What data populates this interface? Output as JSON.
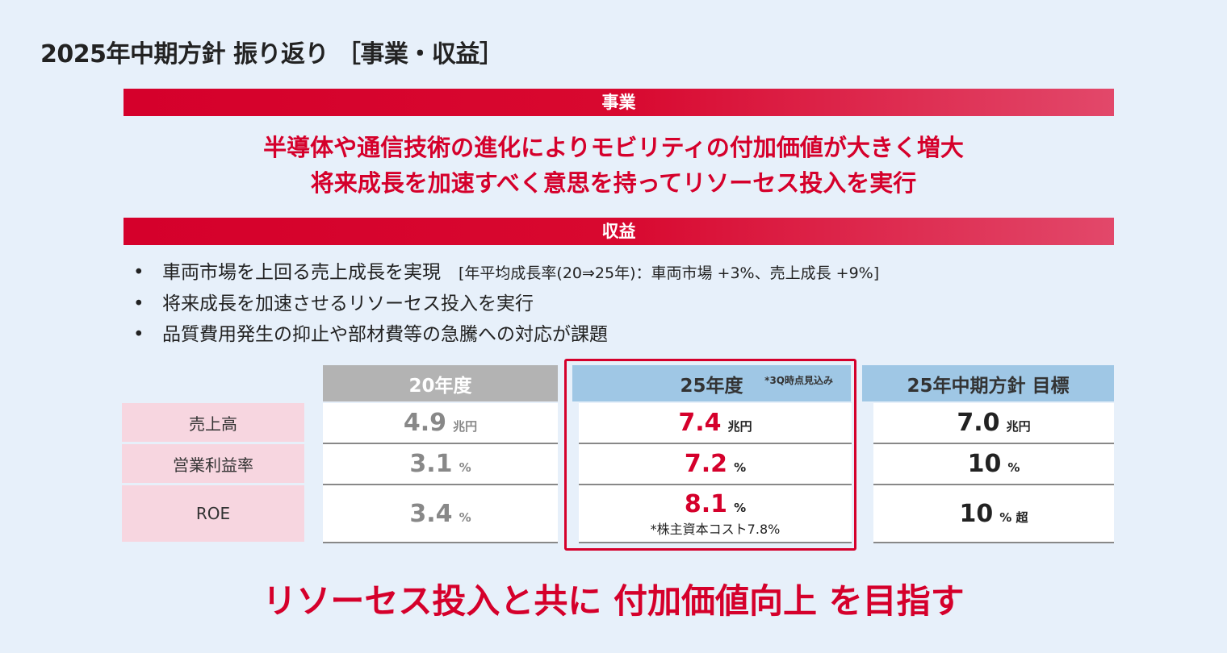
{
  "title": "2025年中期方針 振り返り ［事業・収益］",
  "business": {
    "banner": "事業",
    "lines": [
      "半導体や通信技術の進化によりモビリティの付加価値が大きく増大",
      "将来成長を加速すべく意思を持ってリソーセス投入を実行"
    ]
  },
  "profit": {
    "banner": "収益",
    "bullets": [
      {
        "text": "車両市場を上回る売上成長を実現",
        "note": "[年平均成長率(20⇒25年)：車両市場 +3%、売上成長 +9%]"
      },
      {
        "text": "将来成長を加速させるリソーセス投入を実行",
        "note": ""
      },
      {
        "text": "品質費用発生の抑止や部材費等の急騰への対応が課題",
        "note": ""
      }
    ]
  },
  "table": {
    "rows": [
      "売上高",
      "営業利益率",
      "ROE"
    ],
    "columns": [
      {
        "header": "20年度",
        "note": "",
        "values": [
          {
            "num": "4.9",
            "unit": "兆円"
          },
          {
            "num": "3.1",
            "unit": "%"
          },
          {
            "num": "3.4",
            "unit": "%"
          }
        ]
      },
      {
        "header": "25年度",
        "note": "*3Q時点見込み",
        "values": [
          {
            "num": "7.4",
            "unit": "兆円"
          },
          {
            "num": "7.2",
            "unit": "%"
          },
          {
            "num": "8.1",
            "unit": "%",
            "sub": "*株主資本コスト7.8%"
          }
        ]
      },
      {
        "header": "25年中期方針 目標",
        "note": "",
        "values": [
          {
            "num": "7.0",
            "unit": "兆円"
          },
          {
            "num": "10",
            "unit": "%"
          },
          {
            "num": "10",
            "unit": "% 超"
          }
        ]
      }
    ]
  },
  "footer": "リソーセス投入と共に 付加価値向上 を目指す",
  "colors": {
    "accent": "#d5002b",
    "header_gray": "#b3b3b3",
    "header_blue": "#9fc7e5",
    "label_pink": "#f7d6e0"
  }
}
